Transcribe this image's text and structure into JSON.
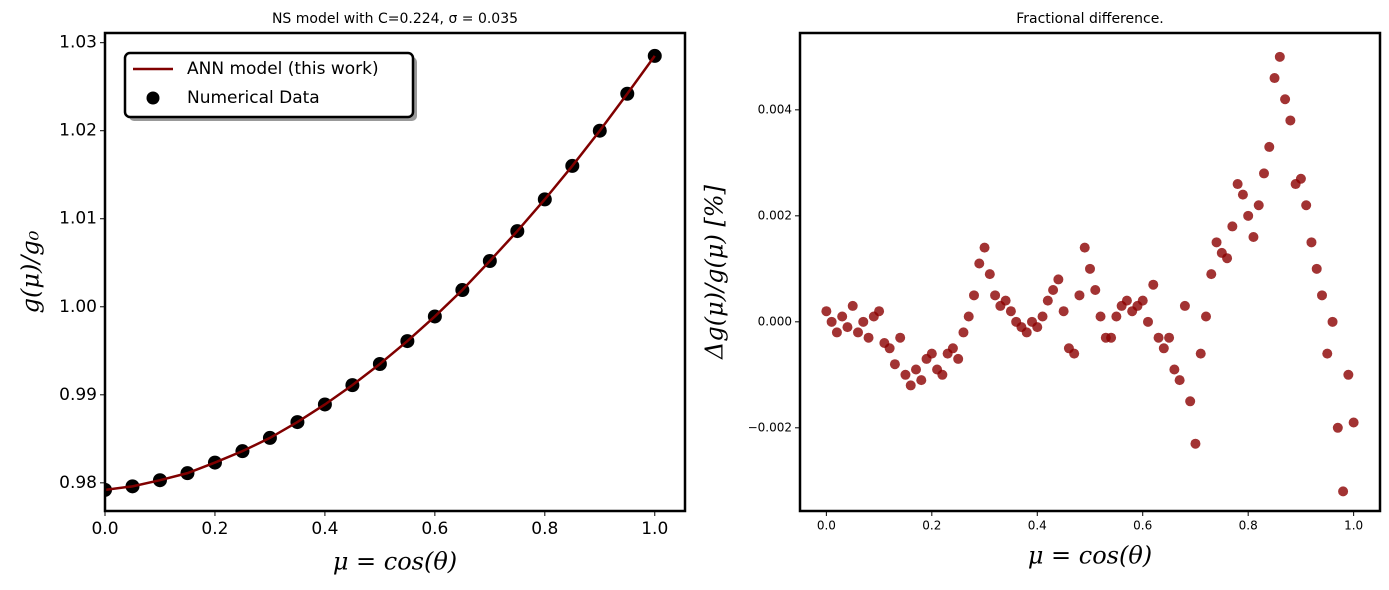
{
  "chart_data": [
    {
      "type": "line",
      "title": "NS model with C=0.224, σ = 0.035",
      "xlabel": "μ = cos(θ)",
      "ylabel": "g(μ)/g₀",
      "x": [
        0,
        0.05,
        0.1,
        0.15,
        0.2,
        0.25,
        0.3,
        0.35,
        0.4,
        0.45,
        0.5,
        0.55,
        0.6,
        0.65,
        0.7,
        0.75,
        0.8,
        0.85,
        0.9,
        0.95,
        1.0
      ],
      "series": [
        {
          "name": "ANN model (this work)",
          "color": "#800000",
          "style": "line",
          "values": [
            0.9792,
            0.9796,
            0.9803,
            0.9811,
            0.9823,
            0.9836,
            0.9851,
            0.9869,
            0.9889,
            0.9911,
            0.9935,
            0.9961,
            0.9989,
            1.0019,
            1.0052,
            1.0086,
            1.0122,
            1.016,
            1.02,
            1.0242,
            1.0285
          ]
        },
        {
          "name": "Numerical Data",
          "color": "#000000",
          "style": "scatter",
          "values": [
            0.9792,
            0.9796,
            0.9803,
            0.9811,
            0.9823,
            0.9836,
            0.9851,
            0.9869,
            0.9889,
            0.9911,
            0.9935,
            0.9961,
            0.9989,
            1.0019,
            1.0052,
            1.0086,
            1.0122,
            1.016,
            1.02,
            1.0242,
            1.0285
          ]
        }
      ],
      "xlim": [
        0,
        1.055
      ],
      "ylim": [
        0.9768,
        1.0311
      ],
      "xticks": [
        {
          "value": 0,
          "label": "0.0"
        },
        0.2,
        0.4,
        0.6,
        0.8,
        {
          "value": 1,
          "label": "1.0"
        }
      ],
      "yticks": [
        0.98,
        0.99,
        {
          "value": 1,
          "label": "1.00"
        },
        1.01,
        1.02,
        1.03
      ],
      "legend": "upper-left"
    },
    {
      "type": "scatter",
      "title": "Fractional difference.",
      "xlabel": "μ = cos(θ)",
      "ylabel": "Δg(μ)/g(μ)  [%]",
      "color": "#8b0000",
      "x": [
        0,
        0.01,
        0.02,
        0.03,
        0.04,
        0.05,
        0.06,
        0.07,
        0.08,
        0.09,
        0.1,
        0.11,
        0.12,
        0.13,
        0.14,
        0.15,
        0.16,
        0.17,
        0.18,
        0.19,
        0.2,
        0.21,
        0.22,
        0.23,
        0.24,
        0.25,
        0.26,
        0.27,
        0.28,
        0.29,
        0.3,
        0.31,
        0.32,
        0.33,
        0.34,
        0.35,
        0.36,
        0.37,
        0.38,
        0.39,
        0.4,
        0.41,
        0.42,
        0.43,
        0.44,
        0.45,
        0.46,
        0.47,
        0.48,
        0.49,
        0.5,
        0.51,
        0.52,
        0.53,
        0.54,
        0.55,
        0.56,
        0.57,
        0.58,
        0.59,
        0.6,
        0.61,
        0.62,
        0.63,
        0.64,
        0.65,
        0.66,
        0.67,
        0.68,
        0.69,
        0.7,
        0.71,
        0.72,
        0.73,
        0.74,
        0.75,
        0.76,
        0.77,
        0.78,
        0.79,
        0.8,
        0.81,
        0.82,
        0.83,
        0.84,
        0.85,
        0.86,
        0.87,
        0.88,
        0.89,
        0.9,
        0.91,
        0.92,
        0.93,
        0.94,
        0.95,
        0.96,
        0.97,
        0.98,
        0.99,
        1.0
      ],
      "values": [
        0.0002,
        0,
        -0.0002,
        0.0001,
        -0.0001,
        0.0003,
        -0.0002,
        0,
        -0.0003,
        0.0001,
        0.0002,
        -0.0004,
        -0.0005,
        -0.0008,
        -0.0003,
        -0.001,
        -0.0012,
        -0.0009,
        -0.0011,
        -0.0007,
        -0.0006,
        -0.0009,
        -0.001,
        -0.0006,
        -0.0005,
        -0.0007,
        -0.0002,
        0.0001,
        0.0005,
        0.0011,
        0.0014,
        0.0009,
        0.0005,
        0.0003,
        0.0004,
        0.0002,
        0,
        -0.0001,
        -0.0002,
        0,
        -0.0001,
        0.0001,
        0.0004,
        0.0006,
        0.0008,
        0.0002,
        -0.0005,
        -0.0006,
        0.0005,
        0.0014,
        0.001,
        0.0006,
        0.0001,
        -0.0003,
        -0.0003,
        0.0001,
        0.0003,
        0.0004,
        0.0002,
        0.0003,
        0.0004,
        0,
        0.0007,
        -0.0003,
        -0.0005,
        -0.0003,
        -0.0009,
        -0.0011,
        0.0003,
        -0.0015,
        -0.0023,
        -0.0006,
        0.0001,
        0.0009,
        0.0015,
        0.0013,
        0.0012,
        0.0018,
        0.0026,
        0.0024,
        0.002,
        0.0016,
        0.0022,
        0.0028,
        0.0033,
        0.0046,
        0.005,
        0.0042,
        0.0038,
        0.0026,
        0.0027,
        0.0022,
        0.0015,
        0.001,
        0.0005,
        -0.0006,
        0,
        -0.002,
        -0.0032,
        -0.001,
        -0.0019
      ],
      "xlim": [
        -0.05,
        1.05
      ],
      "ylim": [
        -0.00357,
        0.00545
      ],
      "xticks": [
        {
          "value": 0,
          "label": "0.0"
        },
        0.2,
        0.4,
        0.6,
        0.8,
        {
          "value": 1,
          "label": "1.0"
        }
      ],
      "yticks": [
        {
          "value": -0.002,
          "label": "−0.002"
        },
        {
          "value": 0,
          "label": "0.000"
        },
        0.002,
        0.004
      ]
    }
  ]
}
